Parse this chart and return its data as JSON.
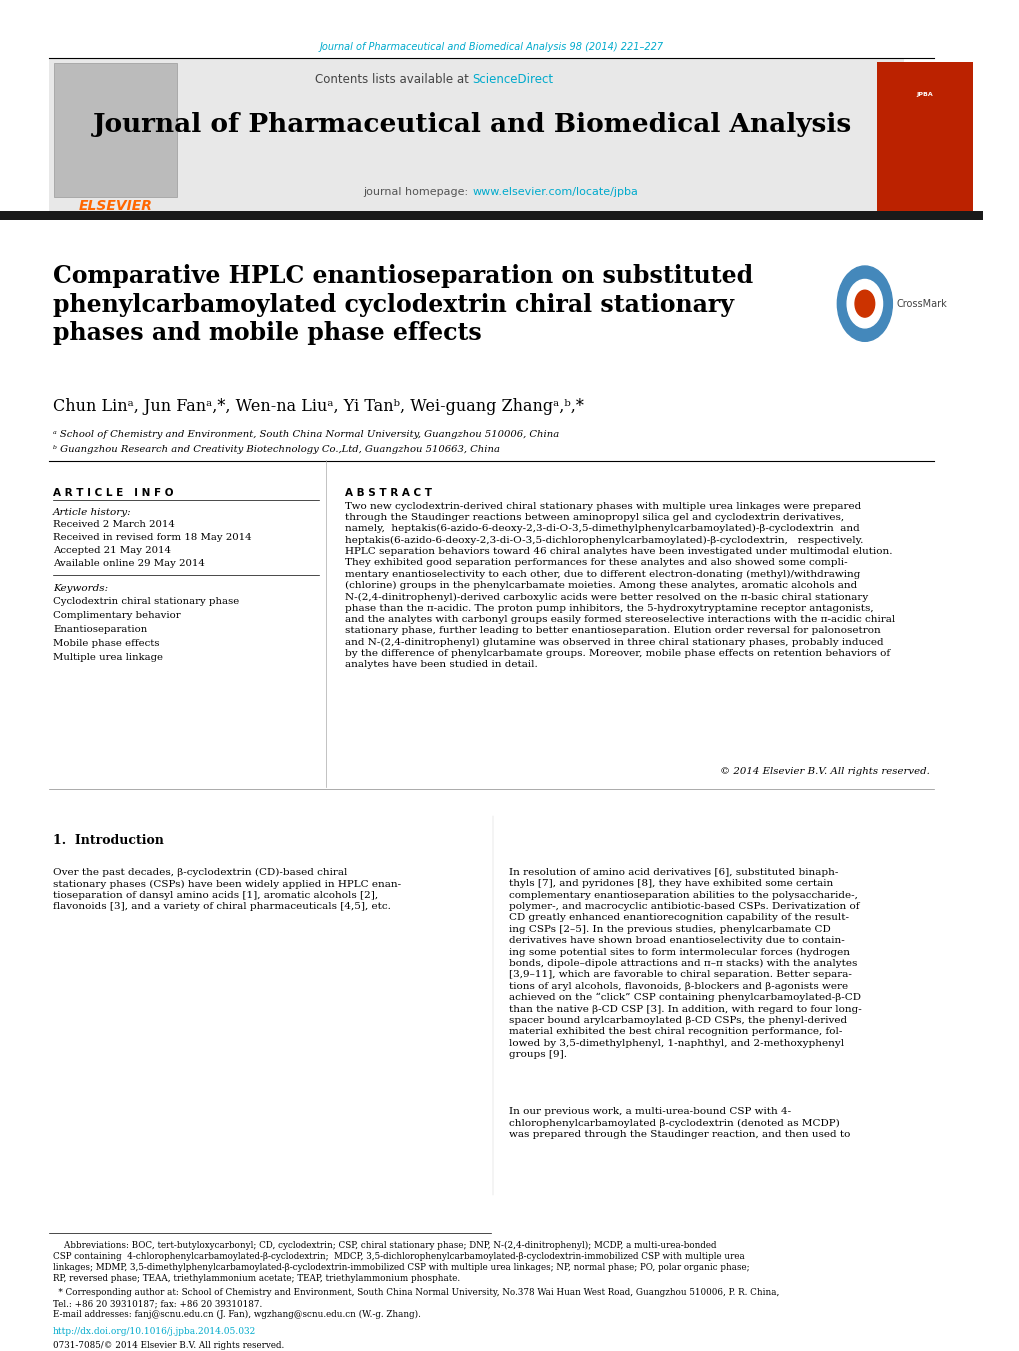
{
  "page_width": 10.2,
  "page_height": 13.51,
  "bg_color": "#ffffff",
  "top_url_text": "Journal of Pharmaceutical and Biomedical Analysis 98 (2014) 221–227",
  "top_url_color": "#00aacc",
  "header_bg": "#e8e8e8",
  "sciencedirect_color": "#00aacc",
  "journal_title": "Journal of Pharmaceutical and Biomedical Analysis",
  "homepage_url": "www.elsevier.com/locate/jpba",
  "homepage_url_color": "#00aacc",
  "elsevier_color": "#ff6600",
  "dark_bar_color": "#1a1a1a",
  "article_title": "Comparative HPLC enantioseparation on substituted\nphenylcarbamoylated cyclodextrin chiral stationary\nphases and mobile phase effects",
  "affil_a": "ᵃ School of Chemistry and Environment, South China Normal University, Guangzhou 510006, China",
  "affil_b": "ᵇ Guangzhou Research and Creativity Biotechnology Co.,Ltd, Guangzhou 510663, China",
  "article_info_title": "A R T I C L E   I N F O",
  "abstract_title": "A B S T R A C T",
  "article_history_label": "Article history:",
  "received": "Received 2 March 2014",
  "received_revised": "Received in revised form 18 May 2014",
  "accepted": "Accepted 21 May 2014",
  "available": "Available online 29 May 2014",
  "keywords_label": "Keywords:",
  "keywords": [
    "Cyclodextrin chiral stationary phase",
    "Complimentary behavior",
    "Enantioseparation",
    "Mobile phase effects",
    "Multiple urea linkage"
  ],
  "abstract_text": "Two new cyclodextrin-derived chiral stationary phases with multiple urea linkages were prepared through the Staudinger reactions between aminopropyl silica gel and cyclodextrin derivatives, namely,  heptakis(6-azido-6-deoxy-2,3-di-O-3,5-dimethylphenylcarbamoylated)-β-cyclodextrin  and heptakis(6-azido-6-deoxy-2,3-di-O-3,5-dichlorophenylcarbamoylated)-β-cyclodextrin,   respectively. HPLC separation behaviors toward 46 chiral analytes have been investigated under multimodal elution. They exhibited good separation performances for these analytes and also showed some complimentary enantioselectivity to each other, due to different electron-donating (methyl)/withdrawing (chlorine) groups in the phenylcarbamate moieties. Among these analytes, aromatic alcohols and N-(2,4-dinitrophenyl)-derived carboxylic acids were better resolved on the π-basic chiral stationary phase than the π-acidic. The proton pump inhibitors, the 5-hydroxytryptamine receptor antagonists, and the analytes with carbonyl groups easily formed stereoselective interactions with the π-acidic chiral stationary phase, further leading to better enantioseparation. Elution order reversal for palonosetron and N-(2,4-dinitrophenyl) glutamine was observed in three chiral stationary phases, probably induced by the difference of phenylcarbamate groups. Moreover, mobile phase effects on retention behaviors of analytes have been studied in detail.",
  "copyright_text": "© 2014 Elsevier B.V. All rights reserved.",
  "intro_title": "1.  Introduction",
  "footnote_doi": "http://dx.doi.org/10.1016/j.jpba.2014.05.032",
  "footnote_issn": "0731-7085/© 2014 Elsevier B.V. All rights reserved.",
  "text_color": "#000000"
}
